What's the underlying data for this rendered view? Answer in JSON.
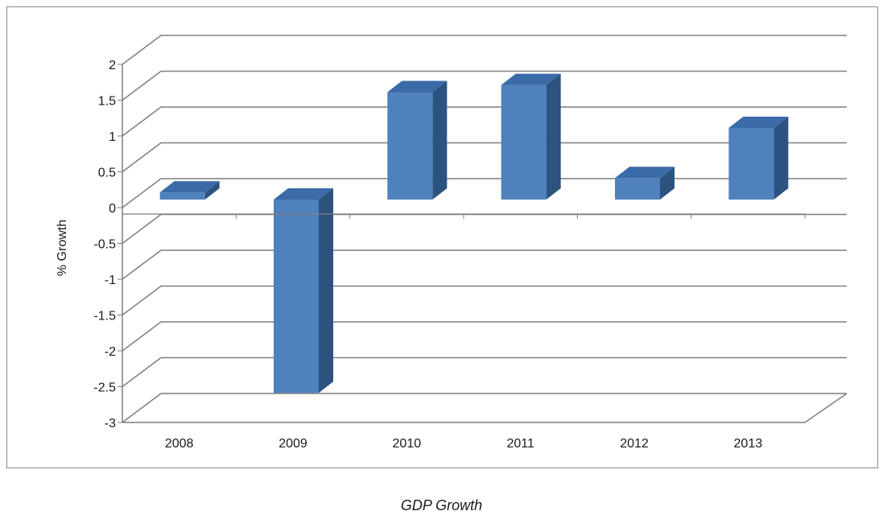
{
  "caption": "GDP Growth",
  "colors": {
    "bar_front": "#4f81bd",
    "bar_side": "#2c5280",
    "bar_top": "#3a6aa8",
    "grid": "#7f7f7f",
    "frame": "#8a8a8a"
  },
  "chart_data": {
    "type": "bar",
    "title": "",
    "xlabel": "",
    "ylabel": "% Growth",
    "categories": [
      "2008",
      "2009",
      "2010",
      "2011",
      "2012",
      "2013"
    ],
    "values": [
      0.1,
      -2.7,
      1.5,
      1.6,
      0.3,
      1.0
    ],
    "ylim": [
      -3,
      2
    ],
    "yticks": [
      "2",
      "1.5",
      "1",
      "0.5",
      "0",
      "-0.5",
      "-1",
      "-1.5",
      "-2",
      "-2.5",
      "-3"
    ],
    "grid": true,
    "legend": "none",
    "style": "3d-column"
  }
}
